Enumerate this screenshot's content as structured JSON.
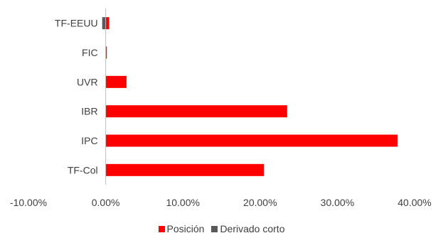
{
  "chart_data": {
    "type": "bar",
    "orientation": "horizontal",
    "stacked": true,
    "categories": [
      "TF-Col",
      "IPC",
      "IBR",
      "UVR",
      "FIC",
      "TF-EEUU"
    ],
    "series": [
      {
        "name": "Posición",
        "color": "#ff0000",
        "values": [
          20.5,
          37.8,
          23.5,
          2.7,
          0.15,
          0.45
        ]
      },
      {
        "name": "Derivado corto",
        "color": "#595959",
        "values": [
          0,
          0,
          0,
          0,
          0,
          -0.45
        ]
      }
    ],
    "xlim": [
      -10,
      40
    ],
    "xticks": [
      -10,
      0,
      10,
      20,
      30,
      40
    ],
    "xtick_labels": [
      "-10.00%",
      "0.00%",
      "10.00%",
      "20.00%",
      "30.00%",
      "40.00%"
    ],
    "title": "",
    "xlabel": "",
    "ylabel": "",
    "grid": false,
    "legend_position": "bottom"
  }
}
